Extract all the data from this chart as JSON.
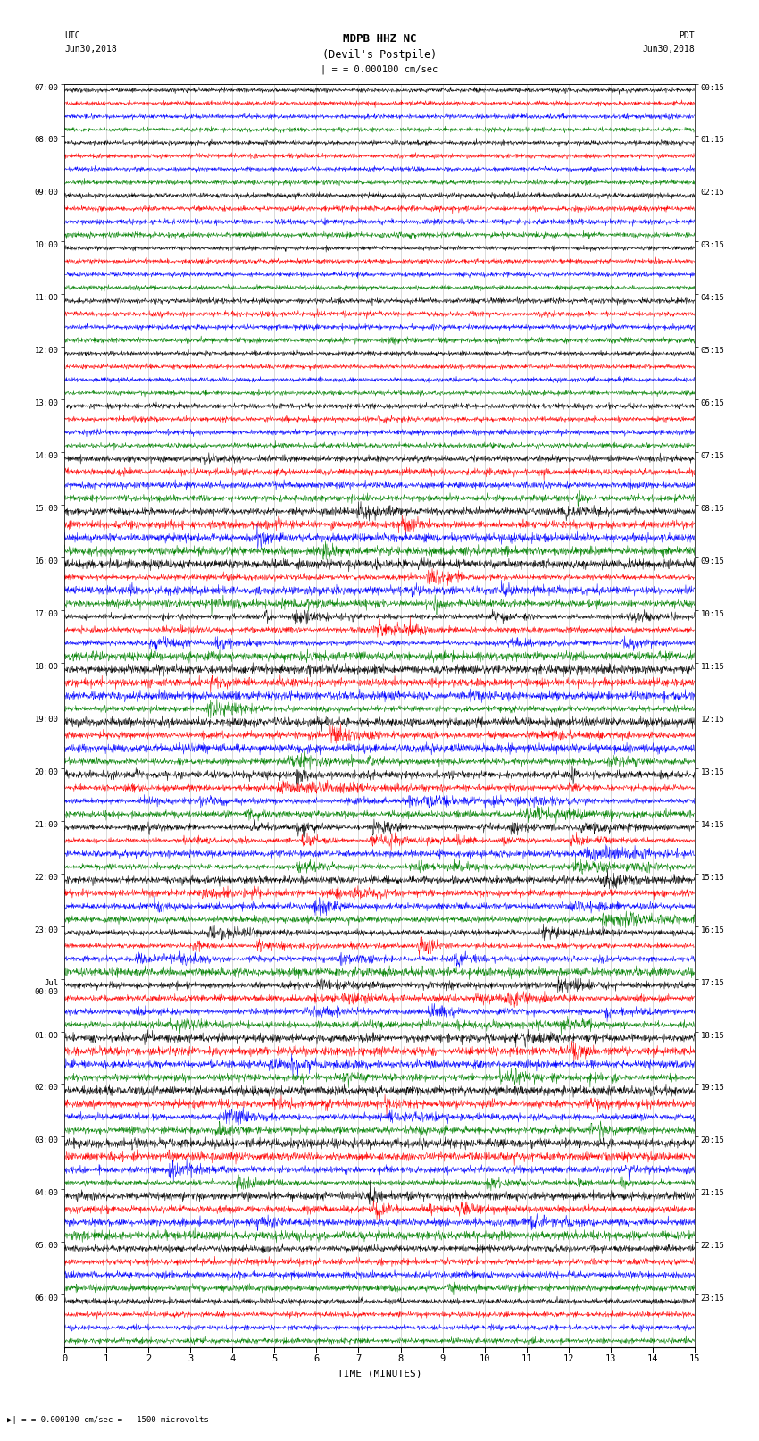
{
  "title_line1": "MDPB HHZ NC",
  "title_line2": "(Devil's Postpile)",
  "scale_label": "= 0.000100 cm/sec",
  "bottom_label": "= 0.000100 cm/sec =   1500 microvolts",
  "xlabel": "TIME (MINUTES)",
  "left_header_line1": "UTC",
  "left_header_line2": "Jun30,2018",
  "right_header_line1": "PDT",
  "right_header_line2": "Jun30,2018",
  "utc_labels": [
    "07:00",
    "08:00",
    "09:00",
    "10:00",
    "11:00",
    "12:00",
    "13:00",
    "14:00",
    "15:00",
    "16:00",
    "17:00",
    "18:00",
    "19:00",
    "20:00",
    "21:00",
    "22:00",
    "23:00",
    "Jul\n00:00",
    "01:00",
    "02:00",
    "03:00",
    "04:00",
    "05:00",
    "06:00"
  ],
  "pdt_labels": [
    "00:15",
    "01:15",
    "02:15",
    "03:15",
    "04:15",
    "05:15",
    "06:15",
    "07:15",
    "08:15",
    "09:15",
    "10:15",
    "11:15",
    "12:15",
    "13:15",
    "14:15",
    "15:15",
    "16:15",
    "17:15",
    "18:15",
    "19:15",
    "20:15",
    "21:15",
    "22:15",
    "23:15"
  ],
  "num_hour_rows": 24,
  "traces_per_hour": 4,
  "trace_colors": [
    "black",
    "red",
    "blue",
    "green"
  ],
  "x_min": 0,
  "x_max": 15,
  "x_ticks": [
    0,
    1,
    2,
    3,
    4,
    5,
    6,
    7,
    8,
    9,
    10,
    11,
    12,
    13,
    14,
    15
  ],
  "fig_width": 8.5,
  "fig_height": 16.13,
  "dpi": 100,
  "bg_color": "white",
  "activity_levels": [
    1.0,
    1.0,
    1.2,
    1.0,
    1.2,
    1.0,
    1.2,
    1.5,
    2.0,
    3.0,
    4.5,
    3.5,
    4.0,
    5.0,
    6.0,
    4.5,
    4.0,
    4.5,
    3.5,
    3.0,
    2.5,
    2.0,
    1.5,
    1.2
  ]
}
